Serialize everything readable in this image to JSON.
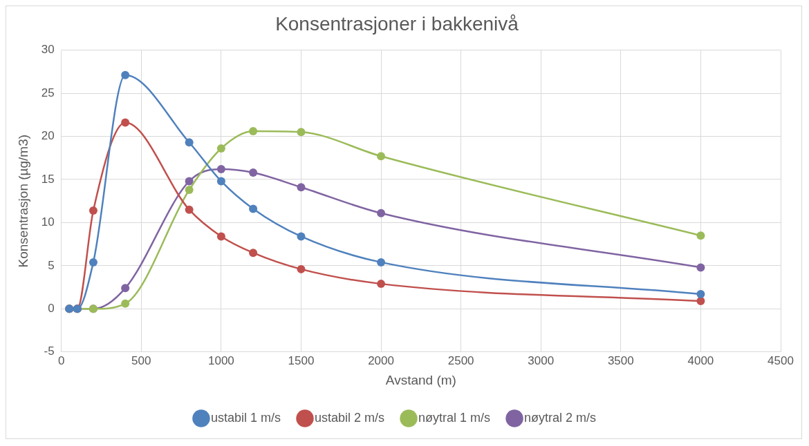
{
  "chart_data": {
    "type": "line",
    "title": "Konsentrasjoner i bakkenivå",
    "xlabel": "Avstand (m)",
    "ylabel": "Konsentrasjon (µg/m3)",
    "x": [
      50,
      100,
      200,
      400,
      800,
      1000,
      1200,
      1500,
      2000,
      4000
    ],
    "series": [
      {
        "name": "ustabil 1 m/s",
        "color": "#4f81bd",
        "values": [
          0,
          0,
          5.4,
          27.1,
          19.3,
          14.8,
          11.6,
          8.4,
          5.4,
          1.7
        ]
      },
      {
        "name": "ustabil 2 m/s",
        "color": "#c0504d",
        "values": [
          0,
          0,
          11.4,
          21.6,
          11.5,
          8.4,
          6.5,
          4.6,
          2.9,
          0.9
        ]
      },
      {
        "name": "nøytral 1 m/s",
        "color": "#9bbb59",
        "values": [
          0,
          0,
          0,
          0.6,
          13.8,
          18.6,
          20.6,
          20.5,
          17.7,
          8.5
        ]
      },
      {
        "name": "nøytral 2 m/s",
        "color": "#8064a2",
        "values": [
          0,
          0,
          0,
          2.4,
          14.8,
          16.2,
          15.8,
          14.1,
          11.1,
          4.8
        ]
      }
    ],
    "xlim": [
      0,
      4500
    ],
    "xticks": [
      0,
      500,
      1000,
      1500,
      2000,
      2500,
      3000,
      3500,
      4000,
      4500
    ],
    "ylim": [
      -5,
      30
    ],
    "yticks": [
      -5,
      0,
      5,
      10,
      15,
      20,
      25,
      30
    ],
    "grid": true,
    "legend": "bottom",
    "marker": "circle",
    "line_style": "solid"
  }
}
